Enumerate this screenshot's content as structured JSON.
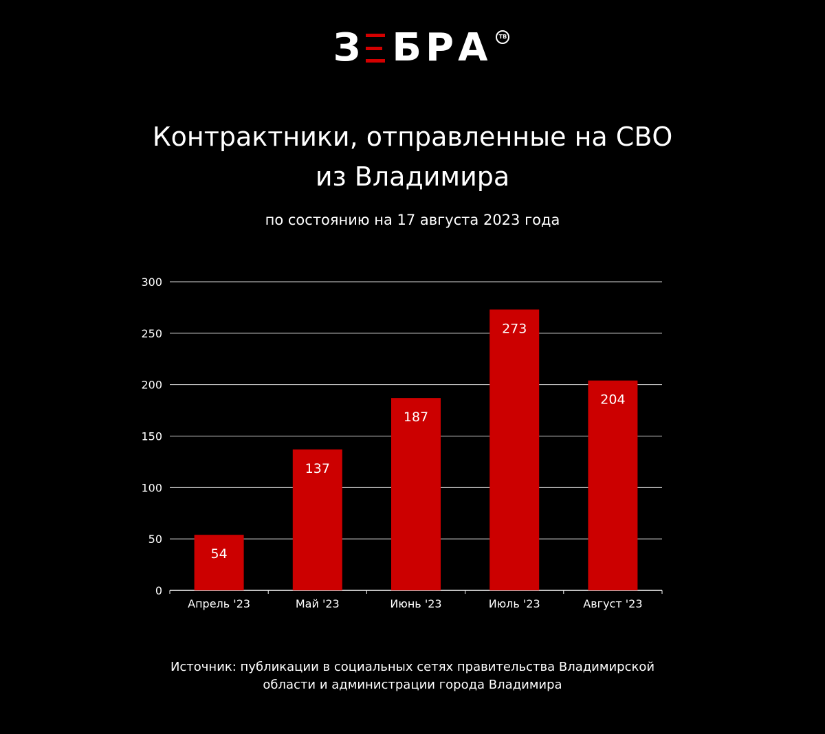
{
  "logo": {
    "letters_before": "З",
    "letters_after": "БРА",
    "badge": "ТВ"
  },
  "title_line1": "Контрактники, отправленные на СВО",
  "title_line2": "из Владимира",
  "subtitle": "по состоянию на 17 августа 2023 года",
  "source_line1": "Источник: публикации в социальных сетях правительства Владимирской",
  "source_line2": "области и администрации города Владимира",
  "chart_data": {
    "type": "bar",
    "categories": [
      "Апрель '23",
      "Май '23",
      "Июнь '23",
      "Июль '23",
      "Август '23"
    ],
    "values": [
      54,
      137,
      187,
      273,
      204
    ],
    "ylim": [
      0,
      300
    ],
    "yticks": [
      0,
      50,
      100,
      150,
      200,
      250,
      300
    ],
    "grid": true,
    "bar_color": "#cc0000",
    "label_color": "#ffffff"
  }
}
